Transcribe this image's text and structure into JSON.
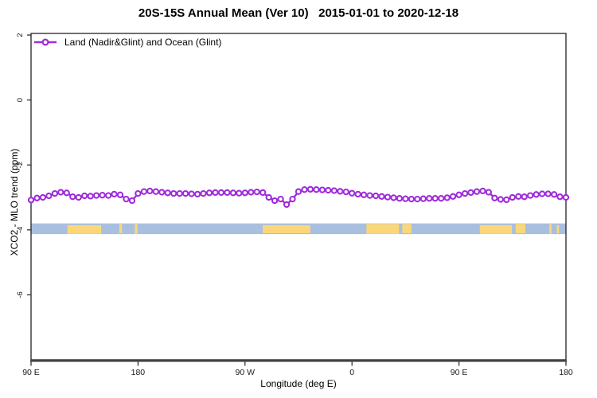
{
  "chart_data": {
    "type": "line",
    "title": "20S-15S Annual Mean (Ver 10)   2015-01-01 to 2020-12-18",
    "xlabel": "Longitude (deg E)",
    "ylabel": "XCO2 - MLO trend (ppm)",
    "x_tick_labels": [
      "90 E",
      "180",
      "90 W",
      "0",
      "90 E",
      "180"
    ],
    "y_ticks": [
      {
        "value": 2,
        "label": "2"
      },
      {
        "value": 0,
        "label": "0"
      },
      {
        "value": -2,
        "label": "-2"
      },
      {
        "value": -4,
        "label": "-4"
      },
      {
        "value": -6,
        "label": "-6"
      }
    ],
    "ylim": [
      -8,
      2.05
    ],
    "x_axis_note": "longitude from 90E wrapping eastward around the globe to 180, 5-degree bins",
    "grid": false,
    "legend": {
      "label": "Land (Nadir&Glint) and Ocean (Glint)",
      "position": "top-left",
      "marker": "open-circle-on-line"
    },
    "series": [
      {
        "name": "Land (Nadir&Glint) and Ocean (Glint)",
        "color": "#9E2BDB",
        "marker": "open-circle",
        "values": [
          -3.08,
          -3.02,
          -3.0,
          -2.95,
          -2.88,
          -2.84,
          -2.86,
          -2.98,
          -3.0,
          -2.95,
          -2.96,
          -2.94,
          -2.93,
          -2.94,
          -2.9,
          -2.92,
          -3.05,
          -3.1,
          -2.88,
          -2.82,
          -2.8,
          -2.82,
          -2.84,
          -2.86,
          -2.88,
          -2.88,
          -2.88,
          -2.89,
          -2.9,
          -2.88,
          -2.86,
          -2.85,
          -2.85,
          -2.85,
          -2.86,
          -2.87,
          -2.86,
          -2.84,
          -2.83,
          -2.85,
          -3.0,
          -3.1,
          -3.05,
          -3.22,
          -3.05,
          -2.82,
          -2.76,
          -2.75,
          -2.76,
          -2.77,
          -2.78,
          -2.79,
          -2.81,
          -2.83,
          -2.87,
          -2.9,
          -2.92,
          -2.94,
          -2.95,
          -2.97,
          -2.99,
          -3.01,
          -3.03,
          -3.04,
          -3.05,
          -3.05,
          -3.04,
          -3.03,
          -3.03,
          -3.03,
          -3.01,
          -2.97,
          -2.92,
          -2.88,
          -2.85,
          -2.82,
          -2.8,
          -2.84,
          -3.02,
          -3.06,
          -3.07,
          -3.0,
          -2.97,
          -2.98,
          -2.94,
          -2.91,
          -2.89,
          -2.89,
          -2.91,
          -2.98,
          -3.0
        ]
      }
    ],
    "surface_strip": {
      "description": "land/ocean map strip for the 20S-15S latitude band",
      "ocean_color": "#A9BFDF",
      "land_color": "#FBD77B",
      "y_top_ppm": -3.8,
      "y_bottom_ppm": -4.13,
      "land_patches_frac": [
        [
          0.068,
          0.131
        ],
        [
          0.165,
          0.17
        ],
        [
          0.194,
          0.199
        ],
        [
          0.433,
          0.522
        ],
        [
          0.627,
          0.688
        ],
        [
          0.694,
          0.711
        ],
        [
          0.839,
          0.899
        ],
        [
          0.906,
          0.924
        ],
        [
          0.969,
          0.973
        ],
        [
          0.983,
          0.987
        ]
      ]
    },
    "colors": {
      "axis": "#222222",
      "axis_heavy": "#4a4a4a",
      "tick_text": "#1a1a1a"
    }
  }
}
